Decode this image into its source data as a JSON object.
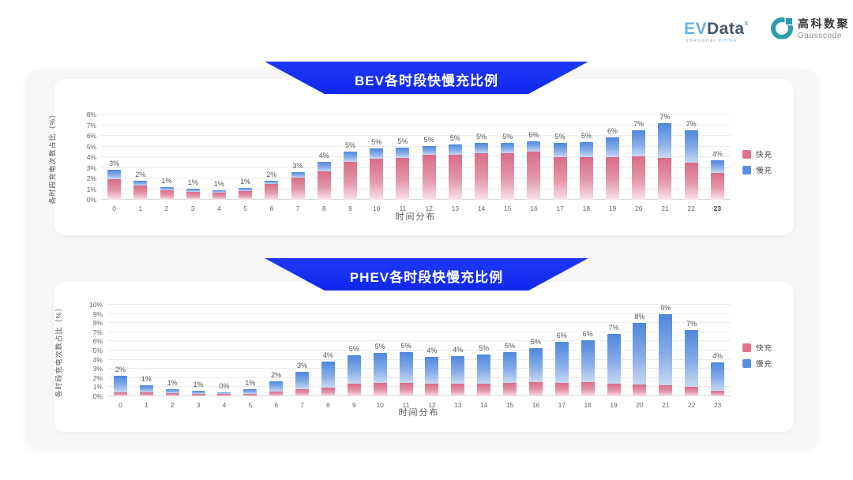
{
  "header": {
    "evdata": {
      "part1": "EV",
      "part2": "Data",
      "sup": "ˣ",
      "subtext1": "SHANGHAI ",
      "subtext2": "CHINA"
    },
    "gausscode": {
      "cn": "高科数聚",
      "en": "Gausscode"
    }
  },
  "colors": {
    "banner_blue": "#1830f2",
    "fast_top": "#d96c88",
    "fast_bottom": "#f8e3e9",
    "slow_top": "#4f87dd",
    "slow_bottom": "#c7d9f3",
    "legend_fast": "#e0718c",
    "legend_slow": "#5b8ee0"
  },
  "chart_data": [
    {
      "type": "bar",
      "stacked": true,
      "title": "BEV各时段快慢充比例",
      "xlabel": "时间分布",
      "ylabel": "各时段充电次数占比（%）",
      "ymax": 8,
      "ytick_step": 1,
      "ytick_suffix": "%",
      "grid": true,
      "legend_position": "right",
      "categories": [
        "0",
        "1",
        "2",
        "3",
        "4",
        "5",
        "6",
        "7",
        "8",
        "9",
        "10",
        "11",
        "12",
        "13",
        "14",
        "15",
        "16",
        "17",
        "18",
        "19",
        "20",
        "21",
        "22",
        "23"
      ],
      "bold_xticks": [
        "23"
      ],
      "series": [
        {
          "name": "快充",
          "color": "#e0718c",
          "values": [
            1.9,
            1.3,
            0.9,
            0.75,
            0.7,
            0.8,
            1.5,
            2.1,
            2.7,
            3.55,
            3.85,
            3.9,
            4.2,
            4.25,
            4.4,
            4.35,
            4.5,
            4.0,
            4.0,
            4.0,
            4.05,
            3.9,
            3.5,
            2.5
          ]
        },
        {
          "name": "慢充",
          "color": "#5b8ee0",
          "values": [
            0.9,
            0.5,
            0.3,
            0.3,
            0.2,
            0.3,
            0.3,
            0.5,
            0.85,
            0.95,
            1.0,
            1.0,
            0.85,
            0.9,
            0.9,
            1.0,
            1.0,
            1.35,
            1.4,
            1.85,
            2.45,
            3.3,
            3.0,
            1.2
          ]
        }
      ],
      "total_labels": [
        "3%",
        "2%",
        "1%",
        "1%",
        "1%",
        "1%",
        "2%",
        "3%",
        "4%",
        "5%",
        "5%",
        "5%",
        "5%",
        "5%",
        "5%",
        "5%",
        "6%",
        "5%",
        "5%",
        "6%",
        "7%",
        "7%",
        "7%",
        "4%"
      ]
    },
    {
      "type": "bar",
      "stacked": true,
      "title": "PHEV各时段快慢充比例",
      "xlabel": "时间分布",
      "ylabel": "各时段充电次数占比（%）",
      "ymax": 10,
      "ytick_step": 1,
      "ytick_suffix": "%",
      "grid": true,
      "legend_position": "right",
      "categories": [
        "0",
        "1",
        "2",
        "3",
        "4",
        "5",
        "6",
        "7",
        "8",
        "9",
        "10",
        "11",
        "12",
        "13",
        "14",
        "15",
        "16",
        "17",
        "18",
        "19",
        "20",
        "21",
        "22",
        "23"
      ],
      "bold_xticks": [],
      "series": [
        {
          "name": "快充",
          "color": "#e0718c",
          "values": [
            0.45,
            0.4,
            0.35,
            0.3,
            0.25,
            0.3,
            0.55,
            0.75,
            0.95,
            1.35,
            1.45,
            1.5,
            1.4,
            1.4,
            1.4,
            1.5,
            1.55,
            1.5,
            1.55,
            1.4,
            1.3,
            1.2,
            1.0,
            0.6
          ]
        },
        {
          "name": "慢充",
          "color": "#5b8ee0",
          "values": [
            1.75,
            0.8,
            0.45,
            0.3,
            0.2,
            0.5,
            1.1,
            1.95,
            2.85,
            3.15,
            3.3,
            3.35,
            2.95,
            3.0,
            3.15,
            3.3,
            3.7,
            4.45,
            4.55,
            5.4,
            6.7,
            7.75,
            6.25,
            3.1
          ]
        }
      ],
      "total_labels": [
        "2%",
        "1%",
        "1%",
        "1%",
        "0%",
        "1%",
        "2%",
        "3%",
        "4%",
        "5%",
        "5%",
        "5%",
        "4%",
        "4%",
        "5%",
        "5%",
        "5%",
        "6%",
        "6%",
        "7%",
        "8%",
        "9%",
        "7%",
        "4%"
      ]
    }
  ]
}
